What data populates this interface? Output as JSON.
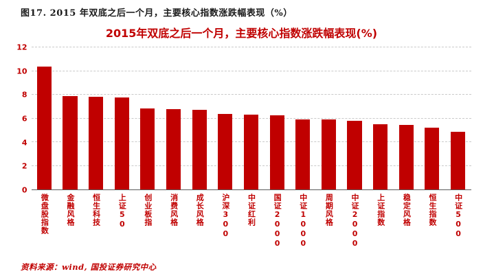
{
  "caption": "图17. 2015 年双底之后一个月，主要核心指数涨跌幅表现（%）",
  "source": "资料来源：wind, 国投证券研究中心",
  "colors": {
    "bar": "#C00000",
    "title": "#C00000",
    "axis_label": "#C00000",
    "caption": "#1a1a1a",
    "source": "#C00000",
    "gridline": "#c9c9c9"
  },
  "chart_data": {
    "type": "bar",
    "title": "2015年双底之后一个月，主要核心指数涨跌幅表现(%)",
    "categories": [
      "微盘股指数",
      "金融风格",
      "恒生科技",
      "上证50",
      "创业板指",
      "消费风格",
      "成长风格",
      "沪深300",
      "中证红利",
      "国证2000",
      "中证1000",
      "周期风格",
      "中证2000",
      "上证指数",
      "稳定风格",
      "恒生指数",
      "中证500"
    ],
    "values": [
      10.35,
      7.9,
      7.85,
      7.75,
      6.85,
      6.8,
      6.75,
      6.4,
      6.3,
      6.25,
      5.9,
      5.9,
      5.8,
      5.5,
      5.45,
      5.2,
      4.85
    ],
    "xlabel": "",
    "ylabel": "",
    "ylim": [
      0,
      12
    ],
    "y_ticks": [
      0,
      2,
      4,
      6,
      8,
      10,
      12
    ],
    "grid": "horizontal-dashed",
    "legend": "none"
  }
}
